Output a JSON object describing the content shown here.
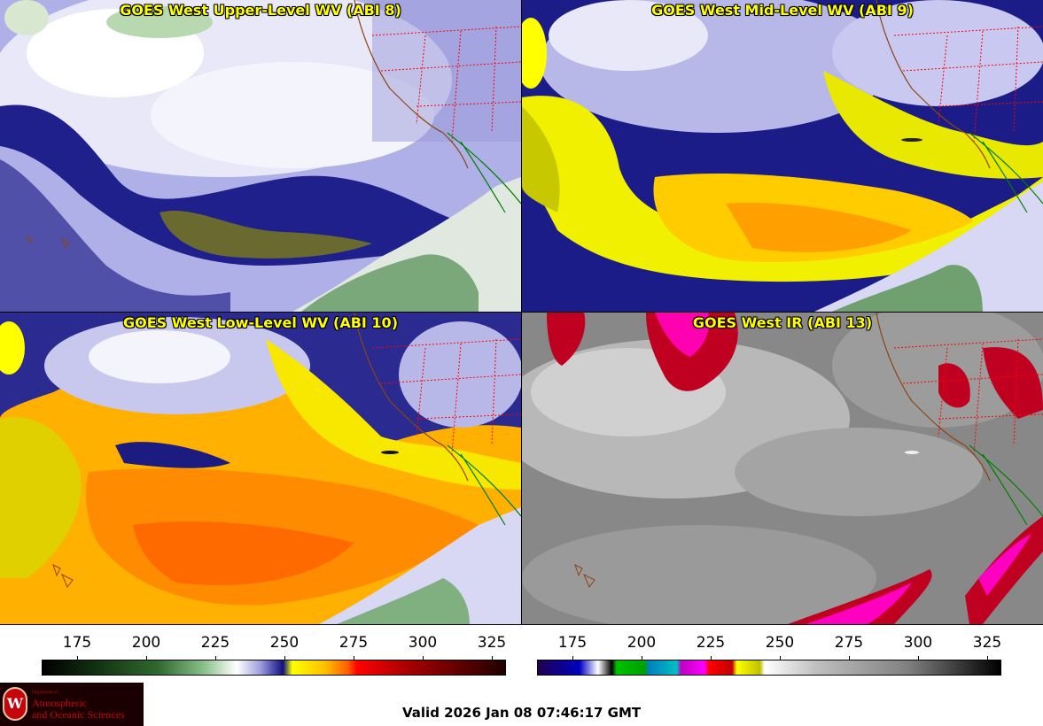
{
  "panels": [
    {
      "title": "GOES West Upper-Level WV (ABI 8)"
    },
    {
      "title": "GOES West Mid-Level WV (ABI 9)"
    },
    {
      "title": "GOES West Low-Level WV (ABI 10)"
    },
    {
      "title": "GOES West IR (ABI 13)"
    }
  ],
  "colorbars": [
    {
      "ticks": [
        "175",
        "200",
        "225",
        "250",
        "275",
        "300",
        "325"
      ],
      "palette": "water-vapor"
    },
    {
      "ticks": [
        "175",
        "200",
        "225",
        "250",
        "275",
        "300",
        "325"
      ],
      "palette": "infrared"
    }
  ],
  "logo": {
    "dept": "Department of",
    "line1": "Atmospheric",
    "line2": "and Oceanic Sciences",
    "seal_letter": "W"
  },
  "valid_time": "Valid 2026 Jan 08 07:46:17 GMT",
  "colors": {
    "title": "#ffff00",
    "border_state": "#ff0000",
    "coast": "#8b4513",
    "mexico_border": "#008000"
  }
}
